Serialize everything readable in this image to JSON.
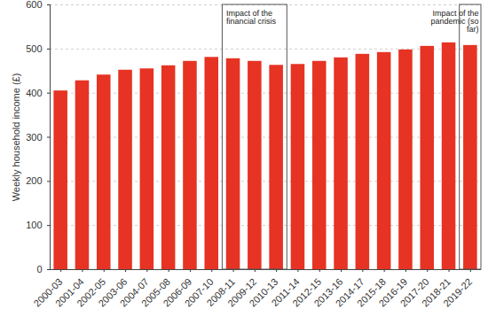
{
  "chart_data": {
    "type": "bar",
    "y_label": "Weekly household income (£)",
    "categories": [
      "2000-03",
      "2001-04",
      "2002-05",
      "2003-06",
      "2004-07",
      "2005-08",
      "2006-09",
      "2007-10",
      "2008-11",
      "2009-12",
      "2010-13",
      "2011-14",
      "2012-15",
      "2013-16",
      "2014-17",
      "2015-18",
      "2016-19",
      "2017-20",
      "2018-21",
      "2019-22"
    ],
    "values": [
      405,
      428,
      441,
      452,
      455,
      462,
      472,
      481,
      478,
      472,
      463,
      465,
      472,
      480,
      488,
      492,
      498,
      506,
      514,
      508
    ],
    "color": "#e63323",
    "ylim": [
      0,
      600
    ],
    "yticks": [
      0,
      100,
      200,
      300,
      400,
      500,
      600
    ],
    "grid": true,
    "annotations": [
      {
        "text": "Impact of the financial crisis",
        "from": "2008-11",
        "to": "2010-13"
      },
      {
        "text": "Impact of the pandemic (so far)",
        "from": "2019-22",
        "to": "2019-22"
      }
    ]
  }
}
